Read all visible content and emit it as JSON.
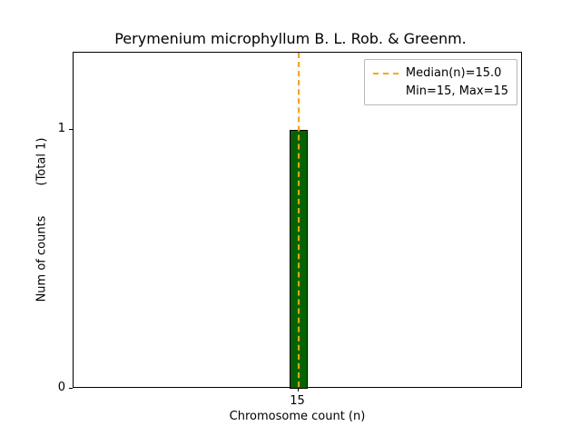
{
  "chart_data": {
    "type": "bar",
    "title": "Perymenium microphyllum B. L. Rob. & Greenm.",
    "xlabel": "Chromosome count (n)",
    "ylabel": "Num of counts        (Total 1)",
    "categories": [
      15
    ],
    "values": [
      1
    ],
    "bars": [
      {
        "x": 15,
        "count": 1,
        "bin_start": 14.98,
        "bin_end": 15.022
      }
    ],
    "xlim": [
      14.5,
      15.5
    ],
    "ylim": [
      0,
      1.3
    ],
    "yticks": [
      0,
      1
    ],
    "xticks": [
      15
    ],
    "median": 15.0,
    "min": 15,
    "max": 15,
    "total": 1,
    "bar_color": "#006400",
    "bar_edge_color": "#000000",
    "median_line_color": "#ffa500",
    "legend_position": "upper right",
    "grid": false,
    "legend": [
      "Median(n)=15.0",
      "Min=15, Max=15"
    ]
  }
}
